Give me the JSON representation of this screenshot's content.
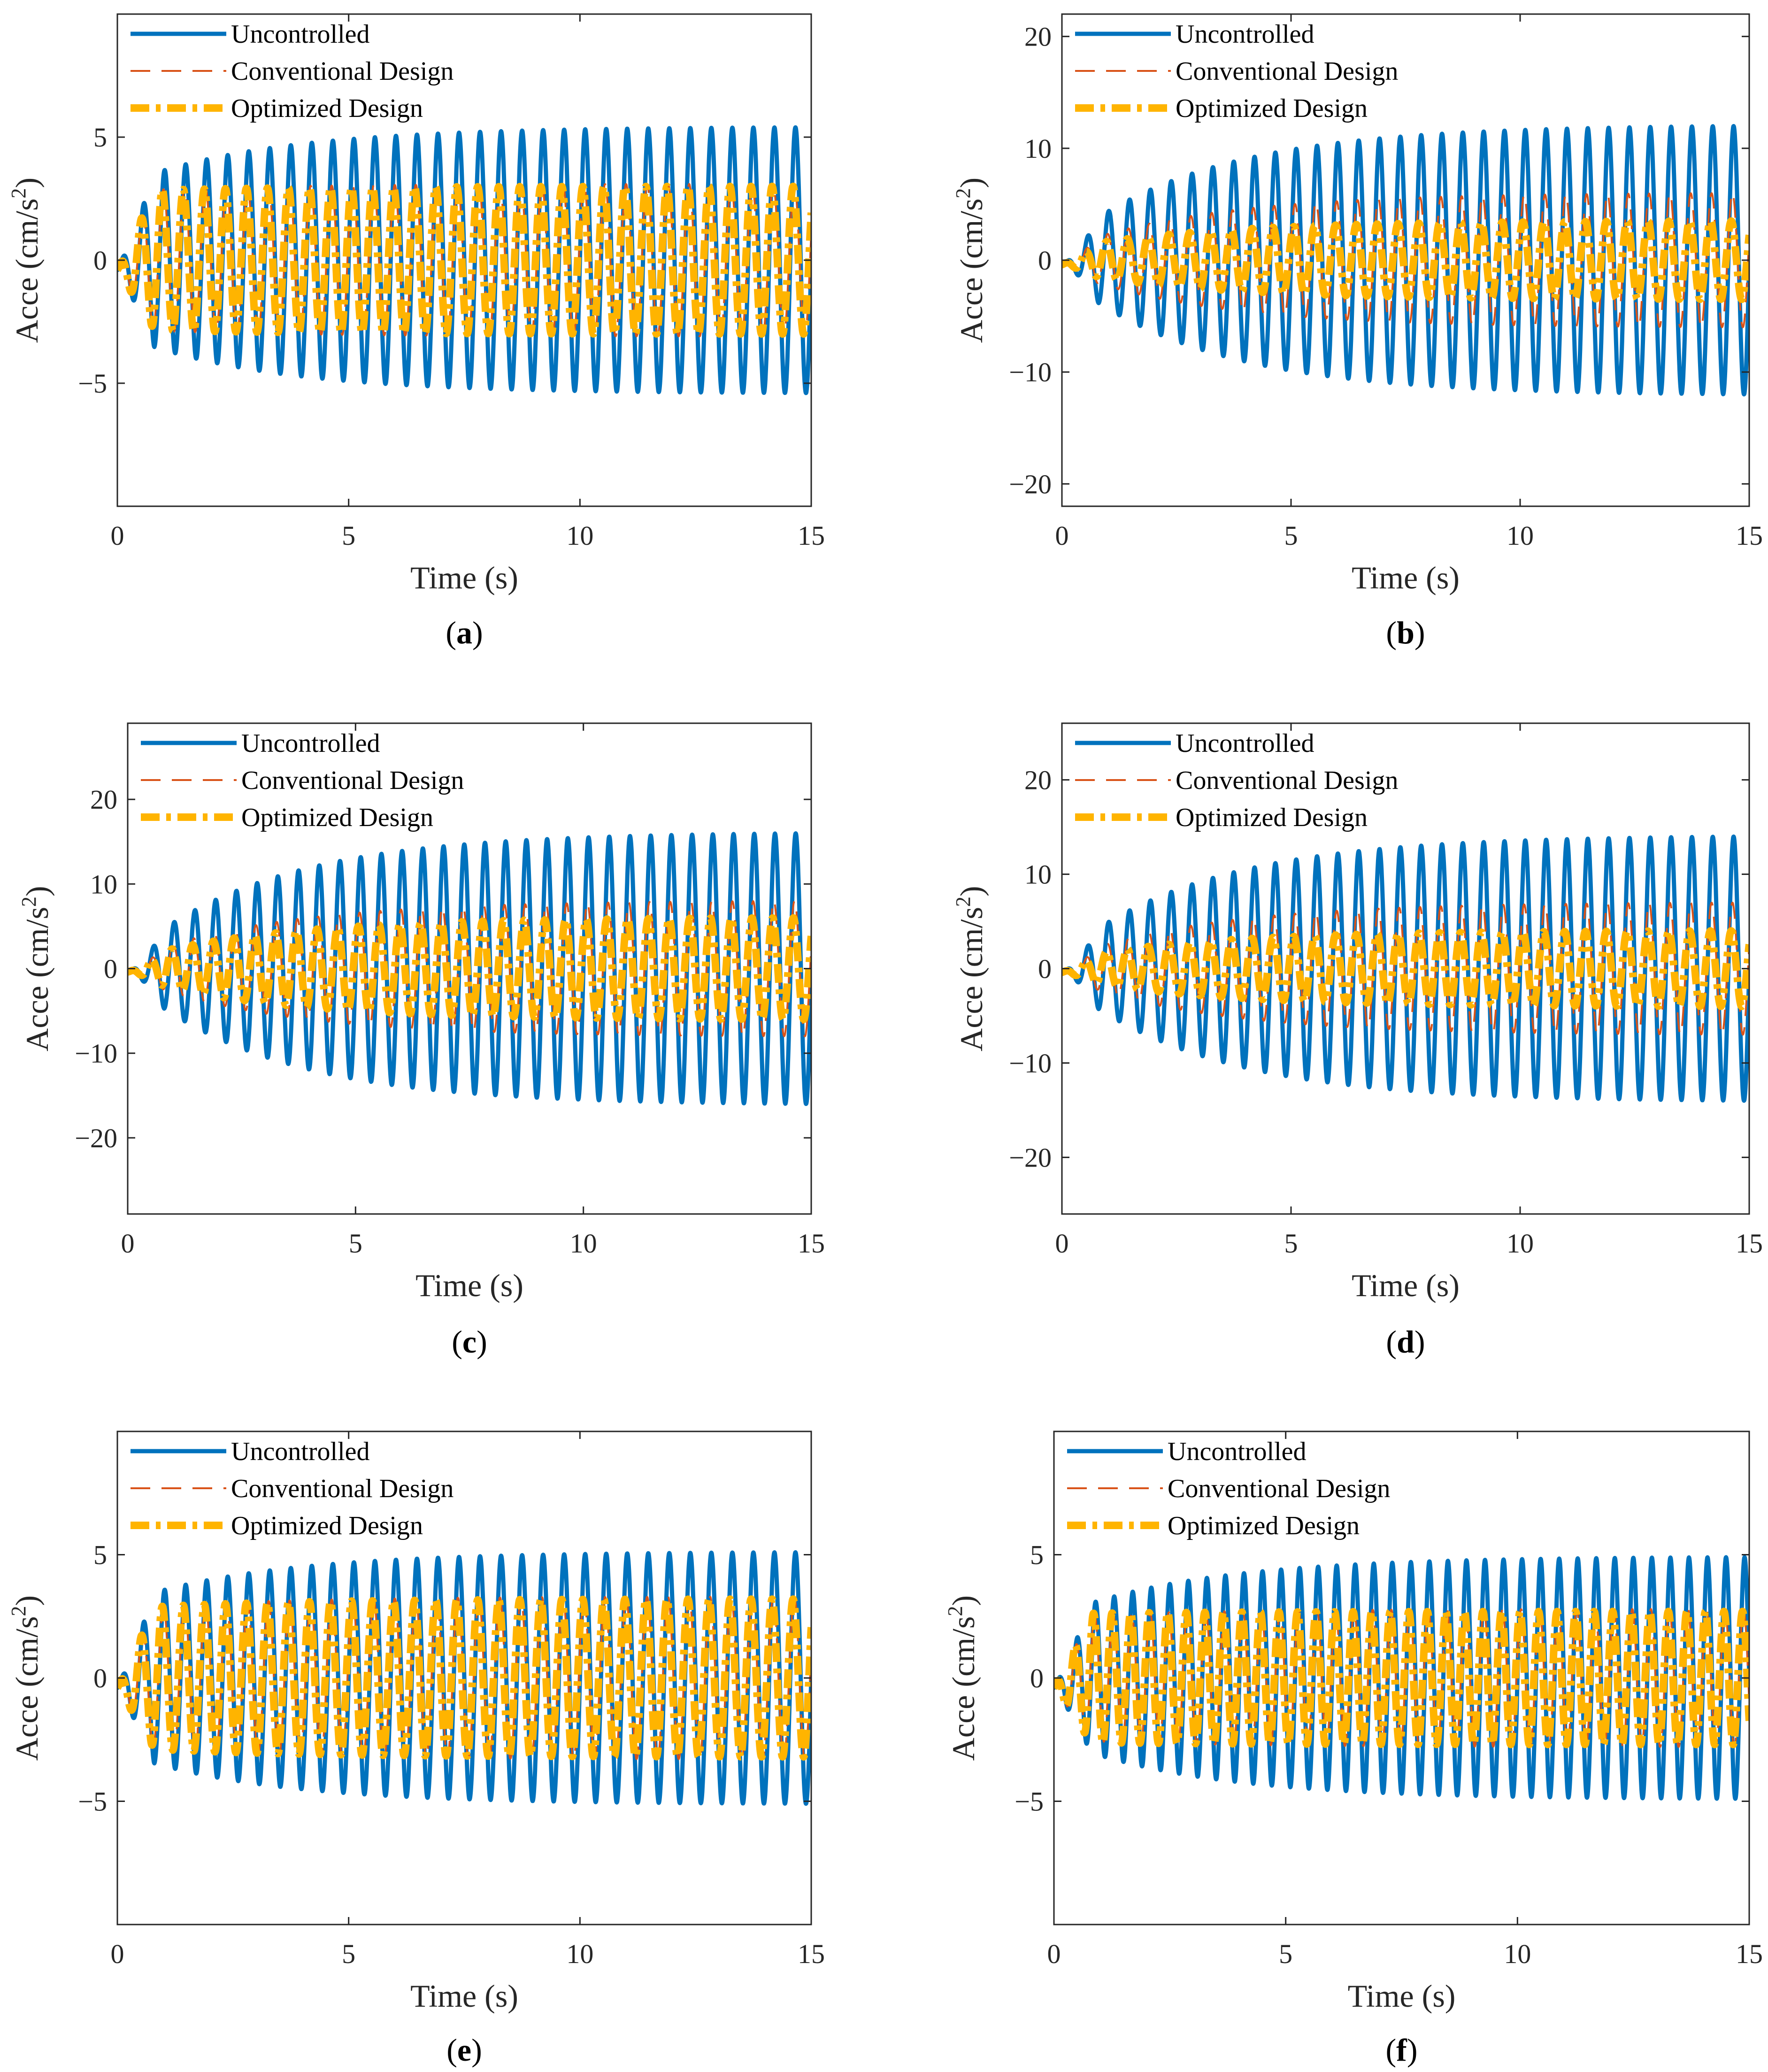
{
  "figure": {
    "legend": [
      {
        "label": "Uncontrolled",
        "color": "#0072BD",
        "style": "solid"
      },
      {
        "label": "Conventional Design",
        "color": "#D95319",
        "style": "dashed"
      },
      {
        "label": "Optimized Design",
        "color": "#FFB400",
        "style": "dashdot"
      }
    ],
    "xlabel": "Time (s)",
    "ylabel_prefix": "Acce (cm/s",
    "ylabel_sup": "2",
    "ylabel_suffix": ")"
  },
  "chart_data": [
    {
      "type": "line",
      "panel": "a",
      "caption_open": "(",
      "caption_letter": "a",
      "caption_close": ")",
      "xlim": [
        0,
        15
      ],
      "xticks": [
        0,
        5,
        10,
        15
      ],
      "ylim": [
        -10,
        10
      ],
      "yticks": [
        -5,
        0,
        5
      ],
      "frequency_hz": 2.2,
      "series": [
        {
          "name": "Uncontrolled",
          "envelope": {
            "start": 3.0,
            "end": 5.4
          }
        },
        {
          "name": "Conventional Design",
          "envelope": {
            "start": 2.8,
            "end": 3.1
          }
        },
        {
          "name": "Optimized Design",
          "envelope": {
            "start": 2.8,
            "end": 3.0
          }
        }
      ]
    },
    {
      "type": "line",
      "panel": "b",
      "caption_open": "(",
      "caption_letter": "b",
      "caption_close": ")",
      "xlim": [
        0,
        15
      ],
      "xticks": [
        0,
        5,
        10,
        15
      ],
      "ylim": [
        -22,
        22
      ],
      "yticks": [
        -20,
        -10,
        0,
        10,
        20
      ],
      "frequency_hz": 2.2,
      "series": [
        {
          "name": "Uncontrolled",
          "envelope": {
            "start": 1.5,
            "end": 12.0
          }
        },
        {
          "name": "Conventional Design",
          "envelope": {
            "start": 1.0,
            "end": 6.0
          }
        },
        {
          "name": "Optimized Design",
          "envelope": {
            "start": 1.0,
            "end": 3.5
          }
        }
      ]
    },
    {
      "type": "line",
      "panel": "c",
      "caption_open": "(",
      "caption_letter": "c",
      "caption_close": ")",
      "xlim": [
        0,
        15
      ],
      "xticks": [
        0,
        5,
        10,
        15
      ],
      "ylim": [
        -29,
        29
      ],
      "yticks": [
        -20,
        -10,
        0,
        10,
        20
      ],
      "frequency_hz": 2.2,
      "series": [
        {
          "name": "Uncontrolled",
          "envelope": {
            "start": 1.5,
            "end": 16.0
          }
        },
        {
          "name": "Conventional Design",
          "envelope": {
            "start": 1.0,
            "end": 8.0
          }
        },
        {
          "name": "Optimized Design",
          "envelope": {
            "start": 1.0,
            "end": 6.0
          }
        }
      ]
    },
    {
      "type": "line",
      "panel": "d",
      "caption_open": "(",
      "caption_letter": "d",
      "caption_close": ")",
      "xlim": [
        0,
        15
      ],
      "xticks": [
        0,
        5,
        10,
        15
      ],
      "ylim": [
        -26,
        26
      ],
      "yticks": [
        -20,
        -10,
        0,
        10,
        20
      ],
      "frequency_hz": 2.2,
      "series": [
        {
          "name": "Uncontrolled",
          "envelope": {
            "start": 1.5,
            "end": 14.0
          }
        },
        {
          "name": "Conventional Design",
          "envelope": {
            "start": 1.0,
            "end": 7.0
          }
        },
        {
          "name": "Optimized Design",
          "envelope": {
            "start": 1.0,
            "end": 4.0
          }
        }
      ]
    },
    {
      "type": "line",
      "panel": "e",
      "caption_open": "(",
      "caption_letter": "e",
      "caption_close": ")",
      "xlim": [
        0,
        15
      ],
      "xticks": [
        0,
        5,
        10,
        15
      ],
      "ylim": [
        -10,
        10
      ],
      "yticks": [
        -5,
        0,
        5
      ],
      "frequency_hz": 2.2,
      "series": [
        {
          "name": "Uncontrolled",
          "envelope": {
            "start": 3.0,
            "end": 5.1
          }
        },
        {
          "name": "Conventional Design",
          "envelope": {
            "start": 2.8,
            "end": 3.3
          }
        },
        {
          "name": "Optimized Design",
          "envelope": {
            "start": 2.8,
            "end": 3.2
          }
        }
      ]
    },
    {
      "type": "line",
      "panel": "f",
      "caption_open": "(",
      "caption_letter": "f",
      "caption_close": ")",
      "xlim": [
        0,
        15
      ],
      "xticks": [
        0,
        5,
        10,
        15
      ],
      "ylim": [
        -10,
        10
      ],
      "yticks": [
        -5,
        0,
        5
      ],
      "frequency_hz": 2.5,
      "series": [
        {
          "name": "Uncontrolled",
          "envelope": {
            "start": 2.5,
            "end": 4.9
          }
        },
        {
          "name": "Conventional Design",
          "envelope": {
            "start": 2.5,
            "end": 2.8
          }
        },
        {
          "name": "Optimized Design",
          "envelope": {
            "start": 2.6,
            "end": 2.7
          }
        }
      ]
    }
  ]
}
